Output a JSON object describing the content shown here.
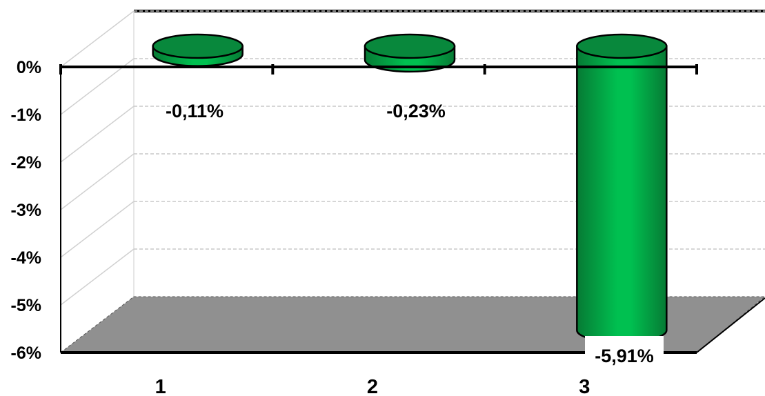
{
  "chart_data": {
    "type": "bar",
    "categories": [
      "1",
      "2",
      "3"
    ],
    "values": [
      -0.11,
      -0.23,
      -5.91
    ],
    "data_labels": [
      "-0,11%",
      "-0,23%",
      "-5,91%"
    ],
    "ylim": [
      -6,
      0
    ],
    "yticks": [
      0,
      -1,
      -2,
      -3,
      -4,
      -5,
      -6
    ],
    "ytick_labels": [
      "0%",
      "-1%",
      "-2%",
      "-3%",
      "-4%",
      "-5%",
      "-6%"
    ],
    "grid": true,
    "bar_style": "3d-cylinder",
    "colors": {
      "bar_light": "#00c050",
      "bar_dark": "#08883c",
      "bar_stroke": "#000000",
      "floor": "#909090",
      "grid": "#c8c8c8",
      "axis": "#000000"
    }
  }
}
